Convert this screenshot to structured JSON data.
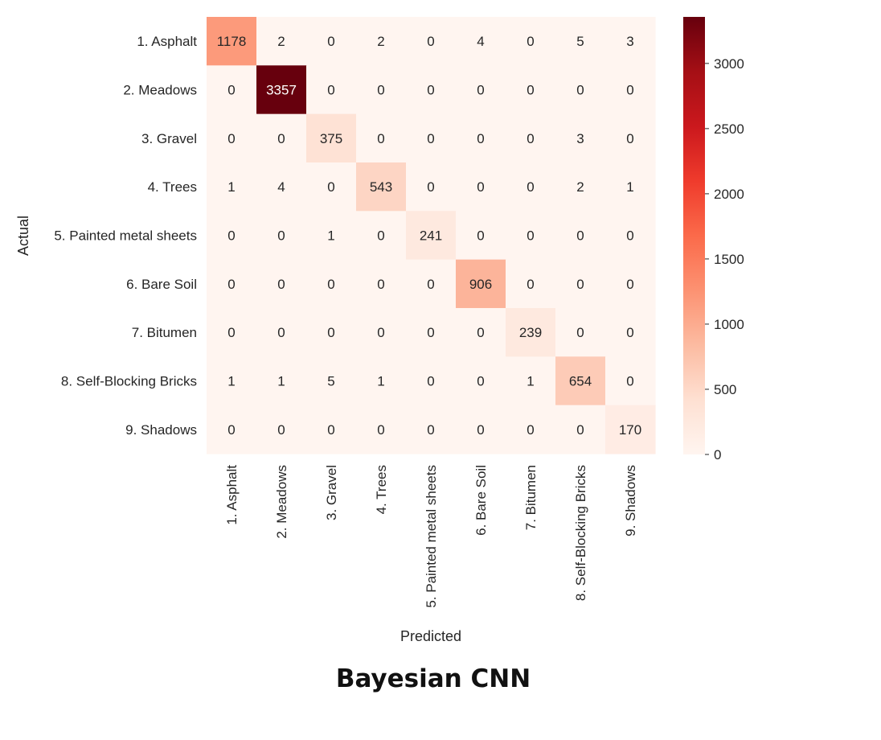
{
  "chart_data": {
    "type": "heatmap",
    "xlabel": "Predicted",
    "ylabel": "Actual",
    "row_labels": [
      "1. Asphalt",
      "2. Meadows",
      "3. Gravel",
      "4. Trees",
      "5. Painted metal sheets",
      "6. Bare Soil",
      "7. Bitumen",
      "8. Self-Blocking Bricks",
      "9. Shadows"
    ],
    "col_labels": [
      "1. Asphalt",
      "2. Meadows",
      "3. Gravel",
      "4. Trees",
      "5. Painted metal sheets",
      "6. Bare Soil",
      "7. Bitumen",
      "8. Self-Blocking Bricks",
      "9. Shadows"
    ],
    "values": [
      [
        1178,
        2,
        0,
        2,
        0,
        4,
        0,
        5,
        3
      ],
      [
        0,
        3357,
        0,
        0,
        0,
        0,
        0,
        0,
        0
      ],
      [
        0,
        0,
        375,
        0,
        0,
        0,
        0,
        3,
        0
      ],
      [
        1,
        4,
        0,
        543,
        0,
        0,
        0,
        2,
        1
      ],
      [
        0,
        0,
        1,
        0,
        241,
        0,
        0,
        0,
        0
      ],
      [
        0,
        0,
        0,
        0,
        0,
        906,
        0,
        0,
        0
      ],
      [
        0,
        0,
        0,
        0,
        0,
        0,
        239,
        0,
        0
      ],
      [
        1,
        1,
        5,
        1,
        0,
        0,
        1,
        654,
        0
      ],
      [
        0,
        0,
        0,
        0,
        0,
        0,
        0,
        0,
        170
      ]
    ],
    "colorbar": {
      "colormap": "Reds",
      "range": [
        0,
        3357
      ],
      "ticks": [
        0,
        500,
        1000,
        1500,
        2000,
        2500,
        3000
      ]
    }
  },
  "caption": "Bayesian CNN"
}
